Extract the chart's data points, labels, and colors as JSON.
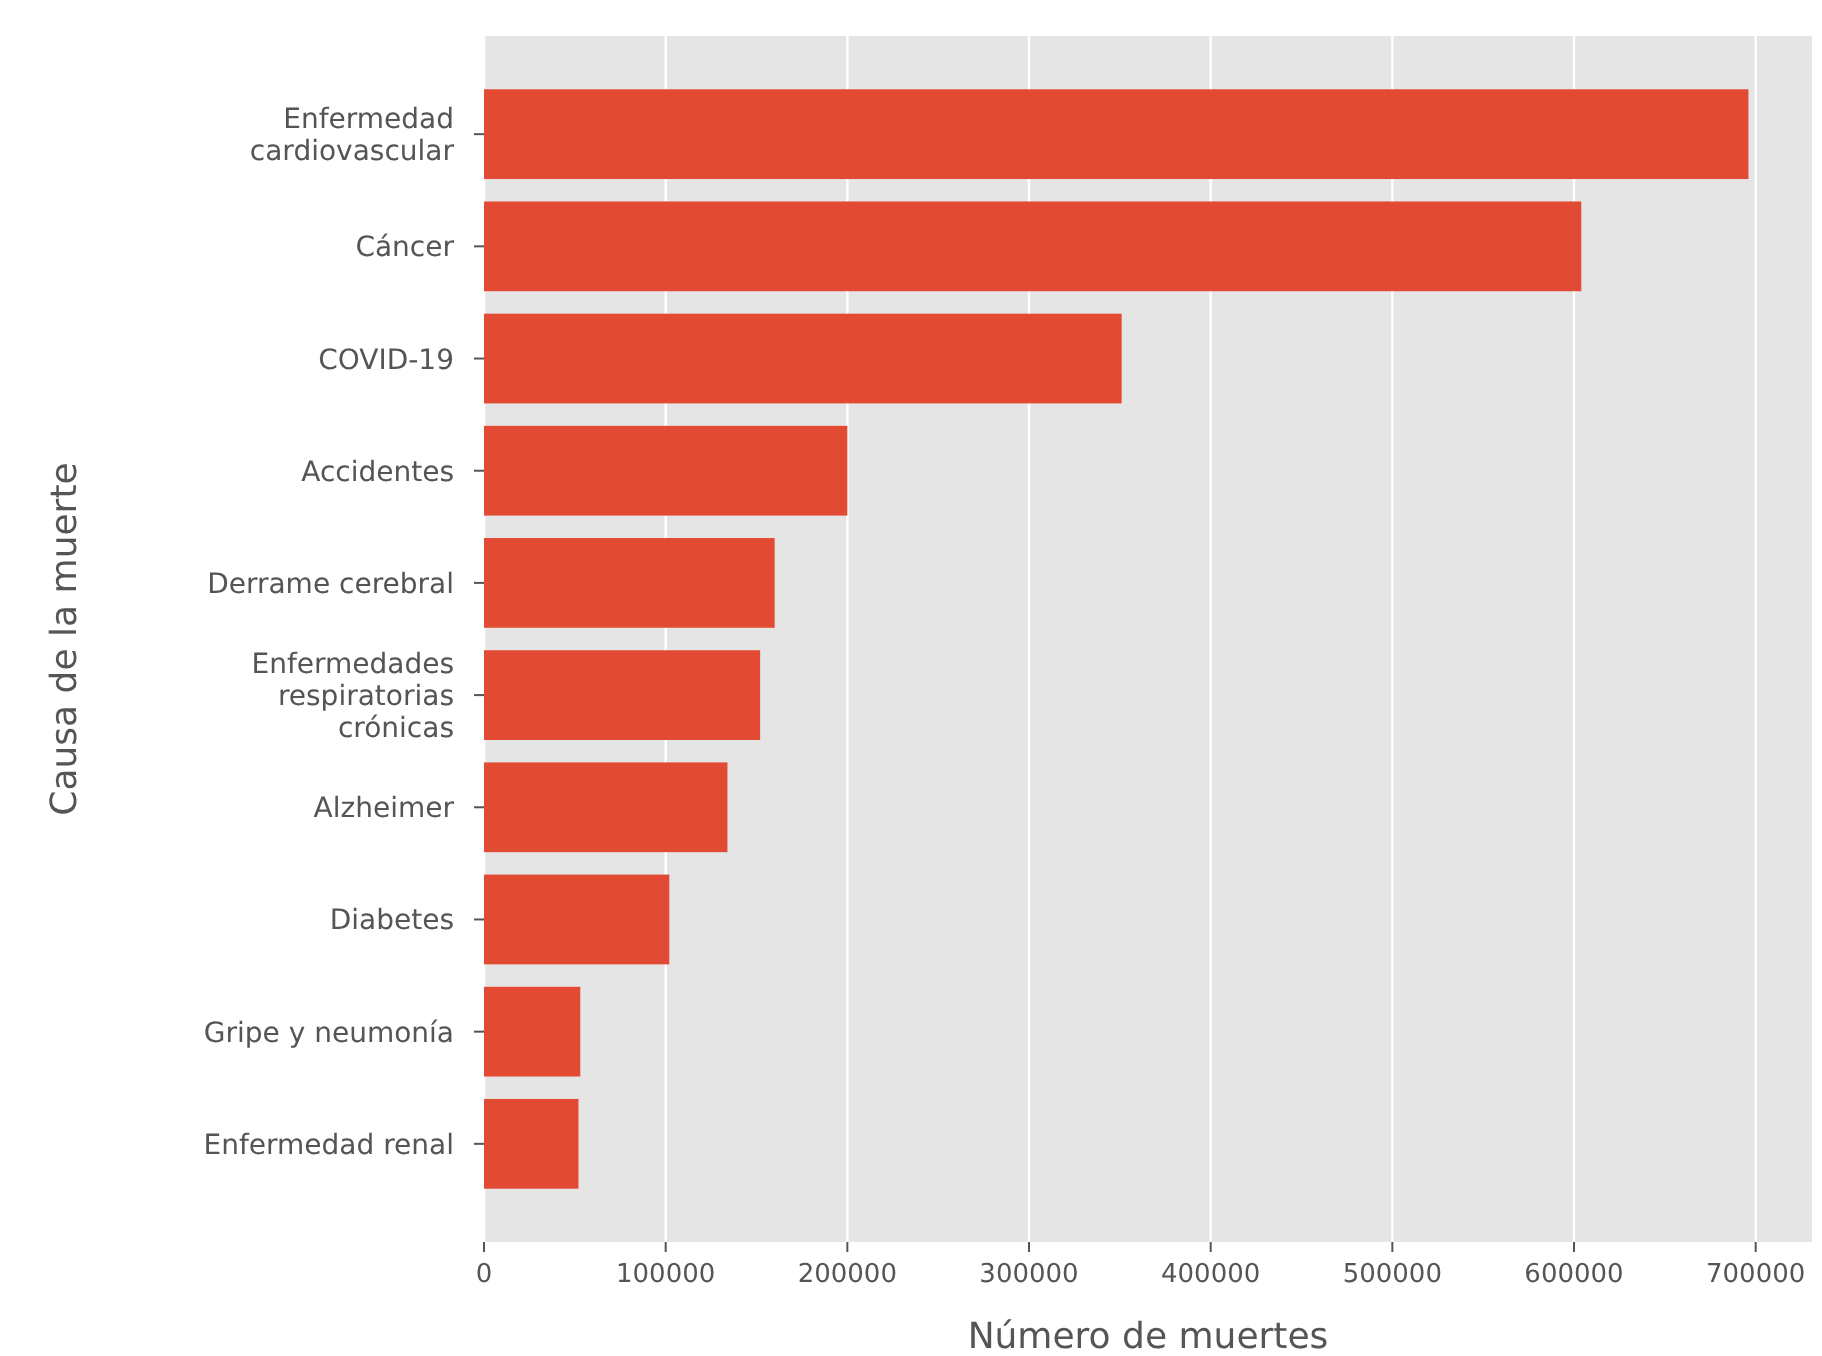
{
  "chart_data": {
    "type": "bar",
    "orientation": "horizontal",
    "xlabel": "Número de muertes",
    "ylabel": "Causa de la muerte",
    "categories": [
      "Enfermedad\ncardiovascular",
      "Cáncer",
      "COVID-19",
      "Accidentes",
      "Derrame cerebral",
      "Enfermedades\nrespiratorias\ncrónicas",
      "Alzheimer",
      "Diabetes",
      "Gripe y neumonía",
      "Enfermedad renal"
    ],
    "values": [
      696000,
      604000,
      351000,
      200000,
      160000,
      152000,
      134000,
      102000,
      53000,
      52000
    ],
    "color": "#e24a33",
    "xlim": [
      0,
      731000
    ],
    "xticks": [
      0,
      100000,
      200000,
      300000,
      400000,
      500000,
      600000,
      700000
    ],
    "grid": "x"
  }
}
